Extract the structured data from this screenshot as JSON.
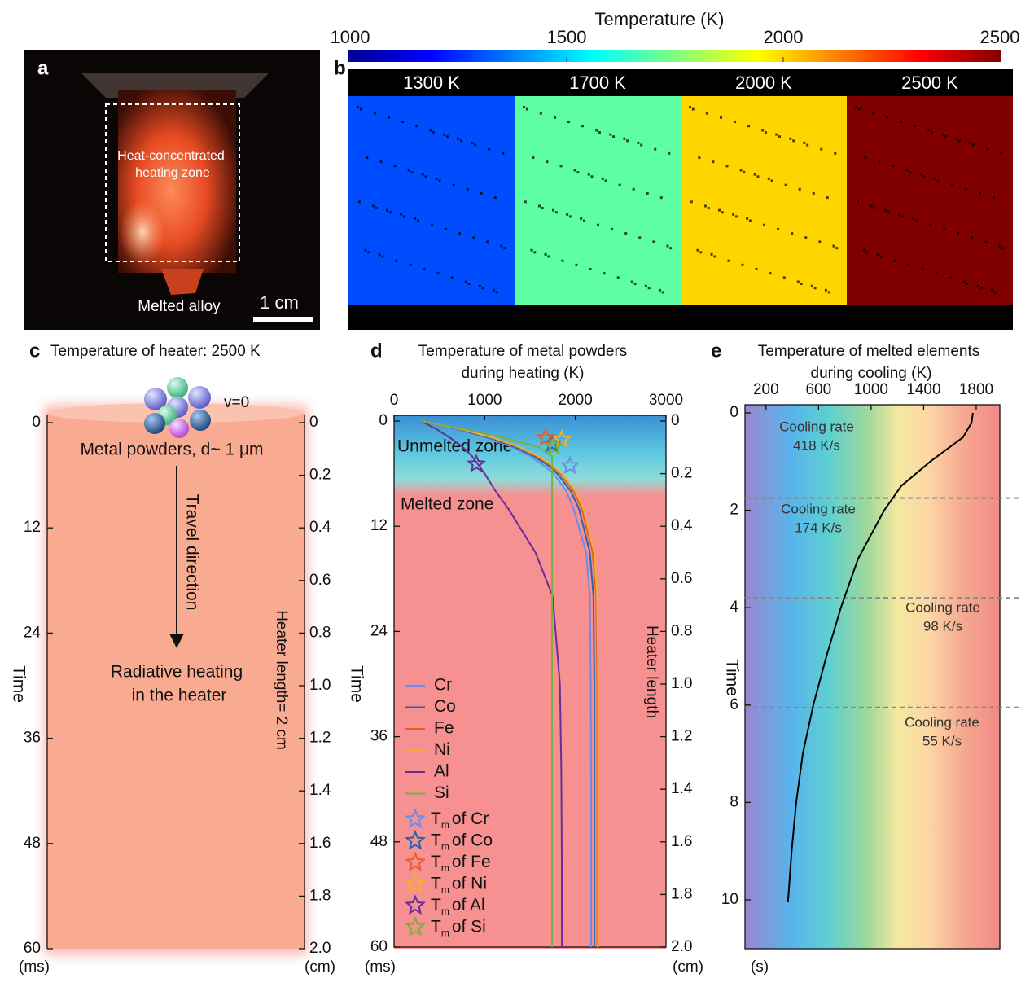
{
  "panel_a": {
    "label": "a",
    "zone_lines": [
      "Heat-concentrated",
      "heating zone"
    ],
    "caption": "Melted alloy",
    "scale_bar": "1 cm"
  },
  "panel_b": {
    "label": "b",
    "colorbar": {
      "title": "Temperature (K)",
      "lim": [
        1000,
        2500
      ],
      "ticks": [
        1000,
        1500,
        2000,
        2500
      ]
    },
    "zones": [
      {
        "value": 1300,
        "label": "1300 K"
      },
      {
        "value": 1700,
        "label": "1700 K"
      },
      {
        "value": 2000,
        "label": "2000 K"
      },
      {
        "value": 2500,
        "label": "2500 K"
      }
    ]
  },
  "panel_c": {
    "label": "c",
    "title": "Temperature of heater: 2500 K",
    "velocity": "v=0",
    "powder": "Metal powders, d~ 1 μm",
    "travel": "Travel direction",
    "heating_lines": [
      "Radiative heating",
      "in the heater"
    ],
    "length_label": "Heater length= 2 cm",
    "ylabel": "Time",
    "yunit": "(ms)",
    "y2unit": "(cm)",
    "ylim": [
      0,
      60
    ],
    "yticks": [
      0,
      12,
      24,
      36,
      48,
      60
    ],
    "y2lim": [
      0,
      2
    ],
    "y2ticks": [
      0,
      0.2,
      0.4,
      0.6,
      0.8,
      {
        "value": 1,
        "label": "1.0"
      },
      1.2,
      1.4,
      1.6,
      1.8,
      {
        "value": 2,
        "label": "2.0"
      }
    ]
  },
  "chart_data": [
    {
      "type": "line",
      "label": "d",
      "title_lines": [
        "Temperature of metal powders",
        "during heating (K)"
      ],
      "ylabel": "Time",
      "yunit": "(ms)",
      "y2label": "Heater length",
      "y2unit": "(cm)",
      "zones": [
        "Unmelted zone",
        "Melted zone"
      ],
      "xlim": [
        0,
        3000
      ],
      "xticks": [
        0,
        1000,
        2000,
        3000
      ],
      "ylim": [
        0,
        60
      ],
      "yticks": [
        0,
        12,
        24,
        36,
        48,
        60
      ],
      "y2lim": [
        0,
        2
      ],
      "y2ticks": [
        0,
        0.2,
        0.4,
        0.6,
        0.8,
        {
          "value": 1,
          "label": "1.0"
        },
        1.2,
        1.4,
        1.6,
        1.8,
        {
          "value": 2,
          "label": "2.0"
        }
      ],
      "time": [
        0,
        1,
        2,
        3,
        4,
        5,
        6,
        8,
        10,
        15,
        20,
        30,
        40,
        50,
        60
      ],
      "series": [
        {
          "name": "Cr",
          "color": "#6b8de8",
          "values": [
            300,
            720,
            1050,
            1310,
            1500,
            1640,
            1760,
            1900,
            1980,
            2120,
            2160,
            2170,
            2174,
            2174,
            2174
          ]
        },
        {
          "name": "Co",
          "color": "#2a63ad",
          "values": [
            300,
            740,
            1080,
            1340,
            1540,
            1690,
            1800,
            1950,
            2040,
            2160,
            2200,
            2210,
            2210,
            2210,
            2210
          ]
        },
        {
          "name": "Fe",
          "color": "#e4602a",
          "values": [
            300,
            760,
            1110,
            1370,
            1570,
            1720,
            1830,
            1980,
            2070,
            2190,
            2230,
            2240,
            2240,
            2240,
            2240
          ]
        },
        {
          "name": "Ni",
          "color": "#f0b030",
          "values": [
            300,
            770,
            1120,
            1390,
            1590,
            1740,
            1850,
            2000,
            2090,
            2210,
            2240,
            2250,
            2250,
            2250,
            2250
          ]
        },
        {
          "name": "Al",
          "color": "#6a2c9a",
          "values": [
            300,
            480,
            630,
            760,
            860,
            930,
            1000,
            1120,
            1260,
            1560,
            1750,
            1830,
            1845,
            1850,
            1851
          ]
        },
        {
          "name": "Si",
          "color": "#7bb03a",
          "values": [
            300,
            800,
            1250,
            1600,
            1743,
            1743,
            1743,
            1743,
            1743,
            1743,
            1743,
            1743,
            1743,
            1743,
            1743
          ]
        }
      ],
      "melting_points": {
        "prefix": "T",
        "subscript": "m",
        "items": [
          {
            "label": "of Cr",
            "color": "#6b8de8",
            "temperature": 1940,
            "time": 5.1
          },
          {
            "label": "of Co",
            "color": "#2a63ad",
            "temperature": 1743,
            "time": 2.6
          },
          {
            "label": "of Fe",
            "color": "#e4602a",
            "temperature": 1671,
            "time": 1.9
          },
          {
            "label": "of Ni",
            "color": "#f0b030",
            "temperature": 1851,
            "time": 2.1
          },
          {
            "label": "of Al",
            "color": "#6a2c9a",
            "temperature": 907,
            "time": 4.9
          },
          {
            "label": "of Si",
            "color": "#7bb03a",
            "temperature": 1761,
            "time": 2.9
          }
        ]
      }
    },
    {
      "type": "line",
      "label": "e",
      "title_lines": [
        "Temperature of melted elements",
        "during cooling (K)"
      ],
      "ylabel": "Time",
      "yunit": "(s)",
      "xlim": [
        40,
        1980
      ],
      "xticks": [
        200,
        600,
        1000,
        1400,
        1800
      ],
      "ylim": [
        0,
        11
      ],
      "yticks": [
        0,
        2,
        4,
        6,
        8,
        10
      ],
      "boundaries": [
        1.75,
        3.8,
        6.05
      ],
      "rates": [
        {
          "label": "Cooling rate",
          "rate": "418 K/s"
        },
        {
          "label": "Cooling rate",
          "rate": "174 K/s"
        },
        {
          "label": "Cooling rate",
          "rate": "98 K/s"
        },
        {
          "label": "Cooling rate",
          "rate": "55 K/s"
        }
      ],
      "time": [
        0,
        0.2,
        0.5,
        1,
        1.5,
        2,
        3,
        4,
        5,
        6,
        7,
        8,
        9,
        10.05
      ],
      "series": [
        {
          "color": "#000000",
          "values": [
            1775,
            1765,
            1700,
            1450,
            1230,
            1100,
            900,
            770,
            660,
            560,
            480,
            430,
            395,
            367
          ]
        }
      ]
    }
  ]
}
